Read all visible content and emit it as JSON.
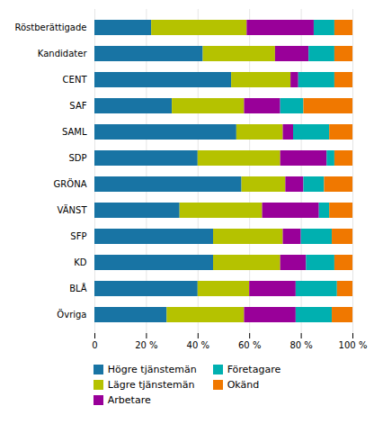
{
  "chart_data": {
    "type": "bar",
    "orientation": "horizontal",
    "stacked": true,
    "categories": [
      "Röstberättigade",
      "Kandidater",
      "CENT",
      "SAF",
      "SAML",
      "SDP",
      "GRÖNA",
      "VÄNST",
      "SFP",
      "KD",
      "BLÅ",
      "Övriga"
    ],
    "series": [
      {
        "name": "Högre tjänstemän",
        "color": "#1874a4",
        "values": [
          22,
          42,
          53,
          30,
          55,
          40,
          57,
          33,
          46,
          46,
          40,
          28
        ]
      },
      {
        "name": "Lägre tjänstemän",
        "color": "#b5c200",
        "values": [
          37,
          28,
          23,
          28,
          18,
          32,
          17,
          32,
          27,
          26,
          20,
          30
        ]
      },
      {
        "name": "Arbetare",
        "color": "#990099",
        "values": [
          26,
          13,
          3,
          14,
          4,
          18,
          7,
          22,
          7,
          10,
          18,
          20
        ]
      },
      {
        "name": "Företagare",
        "color": "#00b0b0",
        "values": [
          8,
          10,
          14,
          9,
          14,
          3,
          8,
          4,
          12,
          11,
          16,
          14
        ]
      },
      {
        "name": "Okänd",
        "color": "#f07800",
        "values": [
          7,
          7,
          7,
          19,
          9,
          7,
          11,
          9,
          8,
          7,
          6,
          8
        ]
      }
    ],
    "xlim": [
      0,
      100
    ],
    "xticks": [
      0,
      {
        "value": 20,
        "label": "20 %"
      },
      {
        "value": 40,
        "label": "40 %"
      },
      {
        "value": 60,
        "label": "60 %"
      },
      {
        "value": 80,
        "label": "80 %"
      },
      {
        "value": 100,
        "label": "100 %"
      }
    ],
    "grid": true,
    "legend": "bottom"
  }
}
